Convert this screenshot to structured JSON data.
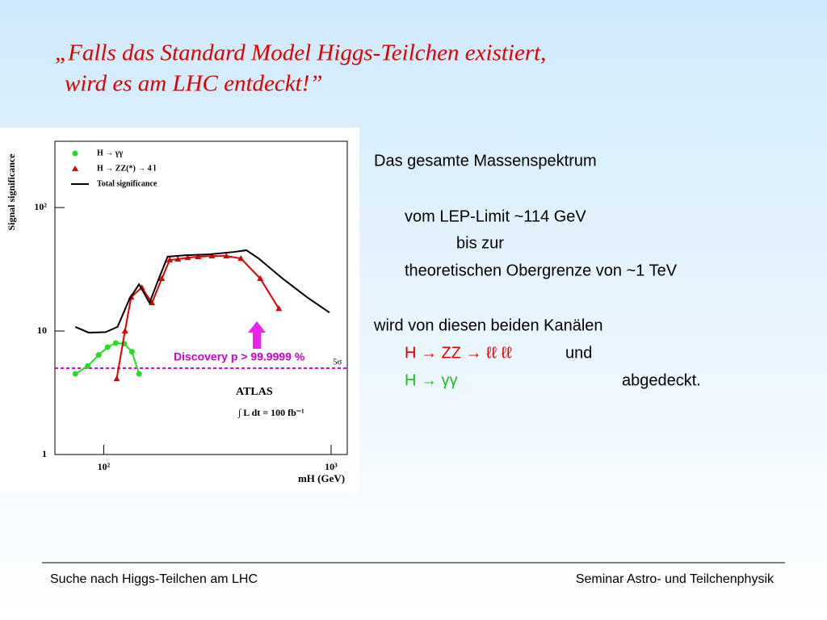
{
  "slide": {
    "title": [
      "„Falls das Standard Model Higgs-Teilchen existiert,",
      "wird es am LHC entdeckt!”"
    ],
    "text": [
      "Das gesamte Massenspektrum",
      "vom LEP-Limit  ~114 GeV",
      "bis zur",
      "theoretischen Obergrenze von ~1 TeV",
      "wird von diesen beiden Kanälen",
      "H → ZZ → ℓℓ ℓℓ",
      "und",
      "H → γγ",
      "abgedeckt."
    ],
    "footer": {
      "left": "Suche nach Higgs-Teilchen am LHC",
      "right": "Seminar Astro- und Teilchenphysik"
    }
  },
  "chart_data": {
    "type": "line",
    "x_label": "mH (GeV)",
    "y_label": "Signal significance",
    "xscale": "log",
    "yscale": "log",
    "xlim": [
      61,
      1178
    ],
    "ylim": [
      1,
      344
    ],
    "xticks": [
      {
        "value": 100,
        "label": "10²"
      },
      {
        "value": 1000,
        "label": "10³"
      }
    ],
    "yticks": [
      1,
      10,
      {
        "value": 100,
        "label": "10²"
      }
    ],
    "series": [
      {
        "name": "H → γγ",
        "color": "#22dd22",
        "marker": "circle",
        "x": [
          75,
          85,
          95,
          104,
          113,
          123,
          133,
          143
        ],
        "values": [
          4.5,
          5.2,
          6.4,
          7.4,
          8.0,
          7.9,
          6.8,
          4.5
        ]
      },
      {
        "name": "H → ZZ(*) → 4 l",
        "color": "#dd0000",
        "marker": "triangle",
        "x": [
          114,
          124,
          132,
          147,
          163,
          180,
          195,
          212,
          234,
          260,
          299,
          346,
          401,
          488,
          589
        ],
        "values": [
          4.1,
          10,
          18.8,
          22.5,
          16.9,
          26.6,
          37.6,
          38.2,
          39.3,
          40,
          40.5,
          40.5,
          38.7,
          26.6,
          15.2
        ]
      },
      {
        "name": "Total significance",
        "color": "#000000",
        "marker": "none",
        "x": [
          75,
          86,
          102,
          115,
          130,
          143,
          159,
          173,
          191,
          230,
          294,
          375,
          424,
          480,
          612,
          783,
          984
        ],
        "values": [
          10.8,
          9.7,
          9.8,
          10.8,
          18.3,
          23.9,
          16.9,
          25.4,
          40,
          41.1,
          41.8,
          43.7,
          45.1,
          38.7,
          26.6,
          18.8,
          14.1
        ]
      }
    ],
    "threshold": {
      "value": 5,
      "label": "5σ",
      "color": "#cc00cc"
    },
    "annotations": [
      "Discovery   p > 99.9999 %",
      "ATLAS",
      "∫ L dt = 100 fb⁻¹"
    ]
  }
}
